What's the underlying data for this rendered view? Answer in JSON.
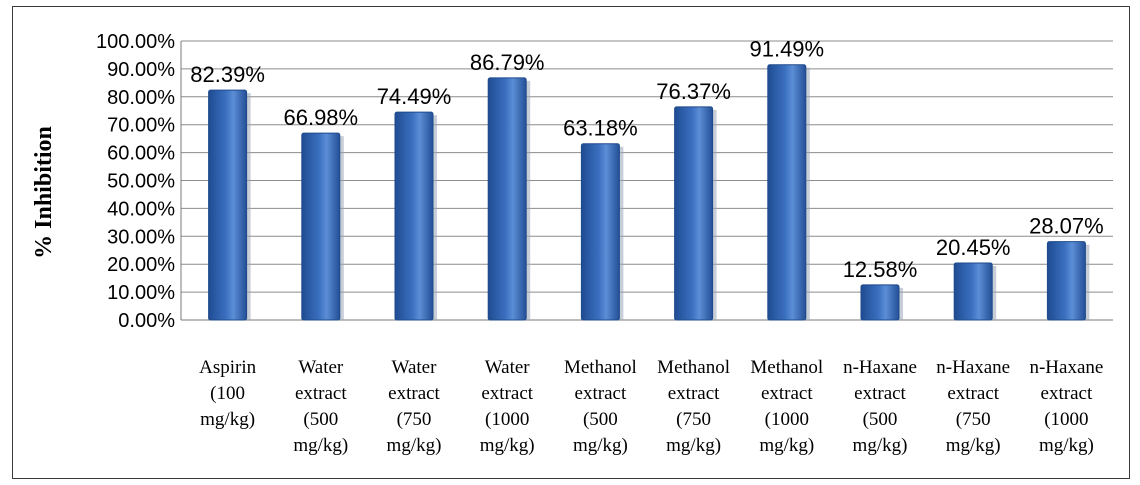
{
  "chart_data": {
    "type": "bar",
    "ylabel": "% Inhibition",
    "xlabel": "",
    "title": "",
    "ylim": [
      0,
      100
    ],
    "yticks": [
      "0.00%",
      "10.00%",
      "20.00%",
      "30.00%",
      "40.00%",
      "50.00%",
      "60.00%",
      "70.00%",
      "80.00%",
      "90.00%",
      "100.00%"
    ],
    "grid": true,
    "legend": "none",
    "bar_color": "#3a6fbf",
    "categories": [
      [
        "Aspirin",
        "(100",
        "mg/kg)"
      ],
      [
        "Water",
        "extract",
        "(500",
        "mg/kg)"
      ],
      [
        "Water",
        "extract",
        "(750",
        "mg/kg)"
      ],
      [
        "Water",
        "extract",
        "(1000",
        "mg/kg)"
      ],
      [
        "Methanol",
        "extract",
        "(500",
        "mg/kg)"
      ],
      [
        "Methanol",
        "extract",
        "(750",
        "mg/kg)"
      ],
      [
        "Methanol",
        "extract",
        "(1000",
        "mg/kg)"
      ],
      [
        "n-Haxane",
        "extract",
        "(500",
        "mg/kg)"
      ],
      [
        "n-Haxane",
        "extract",
        "(750",
        "mg/kg)"
      ],
      [
        "n-Haxane",
        "extract",
        "(1000",
        "mg/kg)"
      ]
    ],
    "values": [
      82.39,
      66.98,
      74.49,
      86.79,
      63.18,
      76.37,
      91.49,
      12.58,
      20.45,
      28.07
    ],
    "data_labels": [
      "82.39%",
      "66.98%",
      "74.49%",
      "86.79%",
      "63.18%",
      "76.37%",
      "91.49%",
      "12.58%",
      "20.45%",
      "28.07%"
    ]
  }
}
